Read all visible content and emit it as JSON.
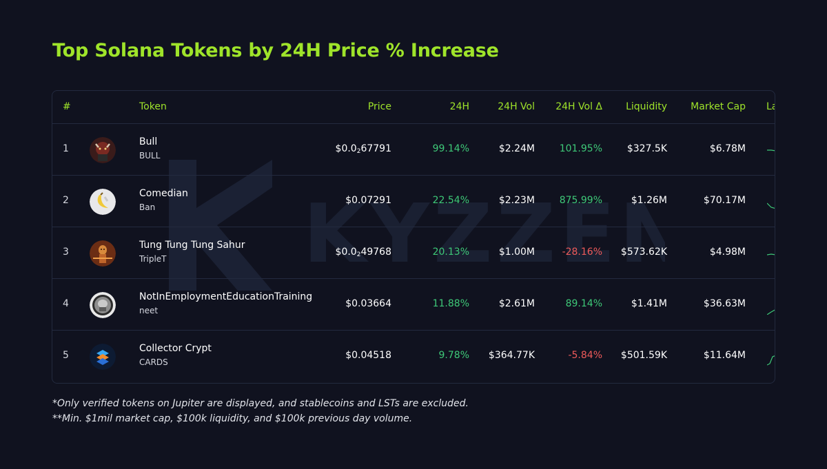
{
  "title": "Top Solana Tokens by 24H Price % Increase",
  "watermark": "KYZZEN",
  "headers": {
    "rank": "#",
    "token": "Token",
    "price": "Price",
    "change_24h": "24H",
    "vol_24h": "24H Vol",
    "vol_delta_24h": "24H Vol Δ",
    "liquidity": "Liquidity",
    "market_cap": "Market Cap",
    "last_7d": "La"
  },
  "rows": [
    {
      "rank": "1",
      "name": "Bull",
      "symbol": "BULL",
      "price_prefix": "$0.0",
      "price_sub": "2",
      "price_rest": "67791",
      "change": "99.14%",
      "volume": "$2.24M",
      "vol_delta": "101.95%",
      "liquidity": "$327.5K",
      "market_cap": "$6.78M"
    },
    {
      "rank": "2",
      "name": "Comedian",
      "symbol": "Ban",
      "price_prefix": "$0.07291",
      "price_sub": "",
      "price_rest": "",
      "change": "22.54%",
      "volume": "$2.23M",
      "vol_delta": "875.99%",
      "liquidity": "$1.26M",
      "market_cap": "$70.17M"
    },
    {
      "rank": "3",
      "name": "Tung Tung Tung Sahur",
      "symbol": "TripleT",
      "price_prefix": "$0.0",
      "price_sub": "2",
      "price_rest": "49768",
      "change": "20.13%",
      "volume": "$1.00M",
      "vol_delta": "-28.16%",
      "liquidity": "$573.62K",
      "market_cap": "$4.98M"
    },
    {
      "rank": "4",
      "name": "NotInEmploymentEducationTraining",
      "symbol": "neet",
      "price_prefix": "$0.03664",
      "price_sub": "",
      "price_rest": "",
      "change": "11.88%",
      "volume": "$2.61M",
      "vol_delta": "89.14%",
      "liquidity": "$1.41M",
      "market_cap": "$36.63M"
    },
    {
      "rank": "5",
      "name": "Collector Crypt",
      "symbol": "CARDS",
      "price_prefix": "$0.04518",
      "price_sub": "",
      "price_rest": "",
      "change": "9.78%",
      "volume": "$364.77K",
      "vol_delta": "-5.84%",
      "liquidity": "$501.59K",
      "market_cap": "$11.64M"
    }
  ],
  "footnotes": [
    "*Only verified tokens on Jupiter are displayed, and stablecoins and LSTs are excluded.",
    "**Min. $1mil market cap, $100k liquidity, and $100k previous day volume."
  ],
  "colors": {
    "accent": "#9fe42a",
    "positive": "#3ec978",
    "negative": "#ef5a5a",
    "background": "#10121f"
  }
}
